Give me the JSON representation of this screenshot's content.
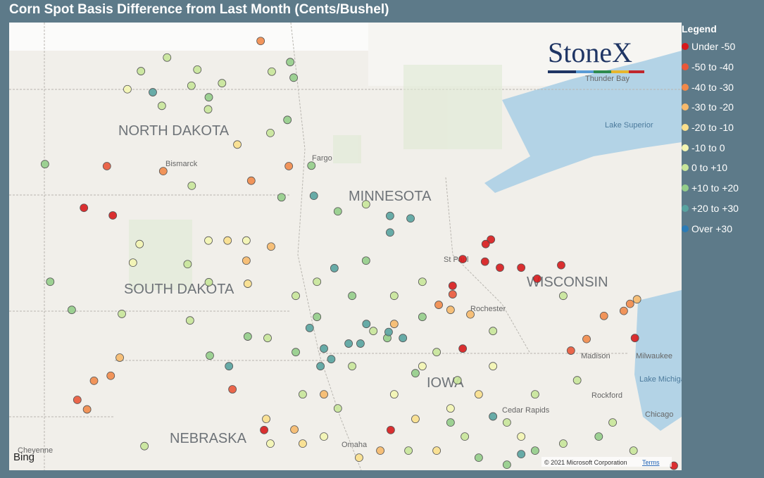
{
  "header": {
    "title": "Corn Spot Basis Difference from Last Month (Cents/Bushel)"
  },
  "legend": {
    "title": "Legend",
    "items": [
      {
        "label": "Under -50",
        "color": "#d7191c"
      },
      {
        "label": "-50 to -40",
        "color": "#e9573a"
      },
      {
        "label": "-40 to -30",
        "color": "#f1894a"
      },
      {
        "label": "-30 to -20",
        "color": "#f6b96c"
      },
      {
        "label": "-20 to -10",
        "color": "#fadf8c"
      },
      {
        "label": "-10 to 0",
        "color": "#f3f5b2"
      },
      {
        "label": "0 to +10",
        "color": "#c8e59a"
      },
      {
        "label": "+10 to +20",
        "color": "#94cd8a"
      },
      {
        "label": "+20 to +30",
        "color": "#58a3a0"
      },
      {
        "label": "Over +30",
        "color": "#2b7bb6"
      }
    ]
  },
  "map": {
    "labels": [
      "NORTH DAKOTA",
      "SOUTH DAKOTA",
      "MINNESOTA",
      "WISCONSIN",
      "NEBRASKA",
      "IOWA",
      "Bismarck",
      "Fargo",
      "St Paul",
      "Rochester",
      "Madison",
      "Milwaukee",
      "Chicago",
      "Cedar Rapids",
      "Rockford",
      "Omaha",
      "Cheyenne",
      "Thunder Bay",
      "Lake Superior",
      "Lake Michigan"
    ],
    "logo": "StoneX",
    "attribution": "© 2021 Microsoft Corporation",
    "terms": "Terms",
    "provider": "Bing"
  },
  "points": [
    [
      -103.59,
      45.98,
      0
    ],
    [
      -102.76,
      45.83,
      0
    ],
    [
      -91.89,
      45.35,
      0
    ],
    [
      -92.04,
      45.26,
      0
    ],
    [
      -92.7,
      44.96,
      0
    ],
    [
      -92.06,
      44.91,
      0
    ],
    [
      -91.63,
      44.79,
      0
    ],
    [
      -91.02,
      44.79,
      0
    ],
    [
      -89.87,
      44.84,
      0
    ],
    [
      -90.56,
      44.57,
      0
    ],
    [
      -92.99,
      44.43,
      0
    ],
    [
      -92.7,
      43.18,
      0
    ],
    [
      -94.77,
      41.56,
      0
    ],
    [
      -98.41,
      41.56,
      0
    ],
    [
      -87.75,
      43.39,
      0
    ],
    [
      -86.63,
      40.85,
      0
    ],
    [
      -102.93,
      46.81,
      1
    ],
    [
      -89.59,
      43.14,
      1
    ],
    [
      -103.78,
      42.16,
      1
    ],
    [
      -99.32,
      42.37,
      1
    ],
    [
      -92.99,
      44.26,
      1
    ],
    [
      -98.51,
      49.3,
      2
    ],
    [
      -101.31,
      46.71,
      2
    ],
    [
      -98.78,
      46.52,
      2
    ],
    [
      -97.7,
      46.81,
      2
    ],
    [
      -102.82,
      42.64,
      2
    ],
    [
      -103.3,
      42.54,
      2
    ],
    [
      -103.5,
      41.97,
      2
    ],
    [
      -88.64,
      43.83,
      2
    ],
    [
      -87.89,
      44.07,
      2
    ],
    [
      -88.07,
      43.93,
      2
    ],
    [
      -93.39,
      44.05,
      2
    ],
    [
      -89.14,
      43.37,
      2
    ],
    [
      -102.56,
      43.0,
      3
    ],
    [
      -98.21,
      45.21,
      3
    ],
    [
      -98.92,
      44.93,
      3
    ],
    [
      -93.05,
      43.95,
      3
    ],
    [
      -92.48,
      43.86,
      3
    ],
    [
      -96.69,
      42.27,
      3
    ],
    [
      -97.54,
      41.57,
      3
    ],
    [
      -95.07,
      41.15,
      3
    ],
    [
      -87.69,
      44.16,
      3
    ],
    [
      -94.67,
      43.67,
      3
    ],
    [
      -99.18,
      47.24,
      4
    ],
    [
      -98.88,
      44.47,
      4
    ],
    [
      -98.35,
      41.78,
      4
    ],
    [
      -97.3,
      41.29,
      4
    ],
    [
      -94.06,
      41.78,
      4
    ],
    [
      -92.24,
      42.27,
      4
    ],
    [
      -93.45,
      41.15,
      4
    ],
    [
      -95.68,
      41.01,
      4
    ],
    [
      -99.46,
      45.33,
      4
    ],
    [
      -102.34,
      48.34,
      5
    ],
    [
      -101.99,
      45.26,
      5
    ],
    [
      -102.18,
      44.89,
      5
    ],
    [
      -100.01,
      45.33,
      5
    ],
    [
      -98.92,
      45.33,
      5
    ],
    [
      -93.86,
      42.83,
      5
    ],
    [
      -93.05,
      41.99,
      5
    ],
    [
      -91.83,
      42.83,
      5
    ],
    [
      -94.67,
      42.27,
      5
    ],
    [
      -96.69,
      41.43,
      5
    ],
    [
      -98.23,
      41.29,
      5
    ],
    [
      -91.02,
      41.43,
      5
    ],
    [
      -101.95,
      48.7,
      6
    ],
    [
      -101.2,
      48.97,
      6
    ],
    [
      -100.33,
      48.73,
      6
    ],
    [
      -99.62,
      48.46,
      6
    ],
    [
      -98.19,
      48.69,
      6
    ],
    [
      -100.5,
      48.41,
      6
    ],
    [
      -101.35,
      48.01,
      6
    ],
    [
      -100.02,
      47.94,
      6
    ],
    [
      -98.23,
      47.47,
      6
    ],
    [
      -100.49,
      46.42,
      6
    ],
    [
      -100.61,
      44.86,
      6
    ],
    [
      -100.0,
      44.5,
      6
    ],
    [
      -102.5,
      43.87,
      6
    ],
    [
      -100.54,
      43.74,
      6
    ],
    [
      -101.85,
      41.24,
      6
    ],
    [
      -97.5,
      44.23,
      6
    ],
    [
      -95.48,
      46.05,
      6
    ],
    [
      -93.86,
      44.51,
      6
    ],
    [
      -89.81,
      44.23,
      6
    ],
    [
      -95.88,
      42.83,
      6
    ],
    [
      -92.85,
      42.55,
      6
    ],
    [
      -91.83,
      43.53,
      6
    ],
    [
      -90.62,
      42.27,
      6
    ],
    [
      -89.41,
      42.55,
      6
    ],
    [
      -88.39,
      41.71,
      6
    ],
    [
      -87.79,
      41.15,
      6
    ],
    [
      -94.67,
      44.23,
      6
    ],
    [
      -93.45,
      43.11,
      6
    ],
    [
      -95.27,
      43.53,
      6
    ],
    [
      -96.89,
      44.51,
      6
    ],
    [
      -98.31,
      43.39,
      6
    ],
    [
      -96.29,
      41.99,
      6
    ],
    [
      -91.43,
      41.71,
      6
    ],
    [
      -89.81,
      41.29,
      6
    ],
    [
      -92.64,
      41.43,
      6
    ],
    [
      -94.26,
      41.15,
      6
    ],
    [
      -97.3,
      42.27,
      6
    ],
    [
      -104.71,
      46.85,
      7
    ],
    [
      -104.56,
      44.51,
      7
    ],
    [
      -103.94,
      43.95,
      7
    ],
    [
      -100.0,
      48.18,
      7
    ],
    [
      -97.66,
      48.88,
      7
    ],
    [
      -97.56,
      48.57,
      7
    ],
    [
      -97.74,
      47.73,
      7
    ],
    [
      -97.05,
      46.82,
      7
    ],
    [
      -97.91,
      46.19,
      7
    ],
    [
      -99.97,
      43.04,
      7
    ],
    [
      -98.88,
      43.42,
      7
    ],
    [
      -96.29,
      45.91,
      7
    ],
    [
      -95.48,
      44.93,
      7
    ],
    [
      -94.87,
      43.39,
      7
    ],
    [
      -94.06,
      42.69,
      7
    ],
    [
      -93.05,
      41.71,
      7
    ],
    [
      -90.62,
      41.15,
      7
    ],
    [
      -88.79,
      41.43,
      7
    ],
    [
      -92.24,
      41.01,
      7
    ],
    [
      -96.89,
      43.81,
      7
    ],
    [
      -97.5,
      43.11,
      7
    ],
    [
      -95.88,
      44.23,
      7
    ],
    [
      -93.86,
      43.81,
      7
    ],
    [
      -91.43,
      40.87,
      7
    ],
    [
      -101.61,
      48.28,
      8
    ],
    [
      -96.98,
      46.22,
      8
    ],
    [
      -94.79,
      45.82,
      8
    ],
    [
      -94.2,
      45.77,
      8
    ],
    [
      -94.79,
      45.49,
      8
    ],
    [
      -96.39,
      44.78,
      8
    ],
    [
      -97.1,
      43.59,
      8
    ],
    [
      -96.69,
      43.18,
      8
    ],
    [
      -96.48,
      42.97,
      8
    ],
    [
      -95.98,
      43.28,
      8
    ],
    [
      -95.64,
      43.28,
      8
    ],
    [
      -94.83,
      43.51,
      8
    ],
    [
      -94.42,
      43.39,
      8
    ],
    [
      -95.47,
      43.67,
      8
    ],
    [
      -99.42,
      42.83,
      8
    ],
    [
      -91.83,
      41.83,
      8
    ],
    [
      -91.02,
      41.08,
      8
    ],
    [
      -96.79,
      42.83,
      8
    ]
  ]
}
